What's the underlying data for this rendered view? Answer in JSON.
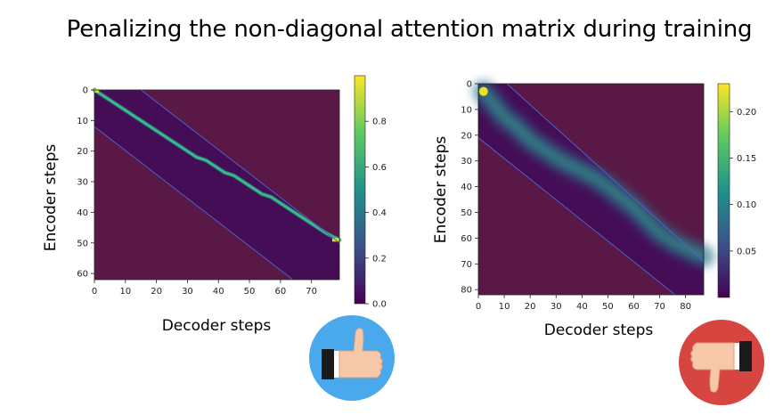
{
  "title": "Penalizing the non-diagonal attention matrix during training",
  "colors": {
    "outside_band": "#5a1846",
    "band_line": "#4a63c8",
    "good_badge": "#4aa8ec",
    "bad_badge": "#d6453f",
    "skin": "#f6c7a8",
    "cuff": "#1a1a1a"
  },
  "badges": [
    {
      "name": "thumbs-up-icon",
      "meaning": "good"
    },
    {
      "name": "thumbs-down-icon",
      "meaning": "bad"
    }
  ],
  "chart_data": [
    {
      "type": "heatmap",
      "xlabel": "Decoder steps",
      "ylabel": "Encoder steps",
      "xlim": [
        0,
        79
      ],
      "ylim": [
        0,
        62
      ],
      "xticks": [
        0,
        10,
        20,
        30,
        40,
        50,
        60,
        70
      ],
      "yticks": [
        0,
        10,
        20,
        30,
        40,
        50,
        60
      ],
      "colorbar": {
        "range": [
          0,
          1.0
        ],
        "ticks": [
          "0.0",
          "0.2",
          "0.4",
          "0.6",
          "0.8"
        ]
      },
      "band": {
        "upper_edge": [
          [
            15,
            0
          ],
          [
            79,
            50
          ]
        ],
        "lower_edge": [
          [
            0,
            12
          ],
          [
            64,
            62
          ]
        ]
      },
      "attention_path": [
        [
          0,
          0
        ],
        [
          3,
          2
        ],
        [
          6,
          4
        ],
        [
          9,
          6
        ],
        [
          12,
          8
        ],
        [
          15,
          10
        ],
        [
          18,
          12
        ],
        [
          21,
          14
        ],
        [
          24,
          16
        ],
        [
          27,
          18
        ],
        [
          30,
          20
        ],
        [
          33,
          22
        ],
        [
          36,
          23
        ],
        [
          39,
          25
        ],
        [
          42,
          27
        ],
        [
          45,
          28
        ],
        [
          48,
          30
        ],
        [
          51,
          32
        ],
        [
          54,
          34
        ],
        [
          57,
          35
        ],
        [
          60,
          37
        ],
        [
          63,
          39
        ],
        [
          66,
          41
        ],
        [
          69,
          43
        ],
        [
          72,
          45
        ],
        [
          75,
          47
        ],
        [
          79,
          49
        ]
      ],
      "peak_value": 0.95
    },
    {
      "type": "heatmap",
      "xlabel": "Decoder steps",
      "ylabel": "Encoder steps",
      "xlim": [
        0,
        87
      ],
      "ylim": [
        0,
        82
      ],
      "xticks": [
        0,
        10,
        20,
        30,
        40,
        50,
        60,
        70,
        80
      ],
      "yticks": [
        0,
        10,
        20,
        30,
        40,
        50,
        60,
        70,
        80
      ],
      "colorbar": {
        "range": [
          0,
          0.23
        ],
        "ticks": [
          "0.05",
          "0.10",
          "0.15",
          "0.20"
        ]
      },
      "band": {
        "upper_edge": [
          [
            11,
            0
          ],
          [
            87,
            69
          ]
        ],
        "lower_edge": [
          [
            0,
            21
          ],
          [
            76,
            82
          ]
        ]
      },
      "attention_path": [
        [
          2,
          3
        ],
        [
          6,
          8
        ],
        [
          10,
          13
        ],
        [
          15,
          17
        ],
        [
          20,
          22
        ],
        [
          26,
          26
        ],
        [
          32,
          30
        ],
        [
          38,
          33
        ],
        [
          44,
          36
        ],
        [
          50,
          40
        ],
        [
          55,
          44
        ],
        [
          60,
          48
        ],
        [
          65,
          53
        ],
        [
          70,
          58
        ],
        [
          76,
          62
        ],
        [
          82,
          65
        ],
        [
          87,
          67
        ]
      ],
      "peak_value": 0.23
    }
  ],
  "caption_left": "Decoder steps",
  "caption_right": "Decoder steps"
}
